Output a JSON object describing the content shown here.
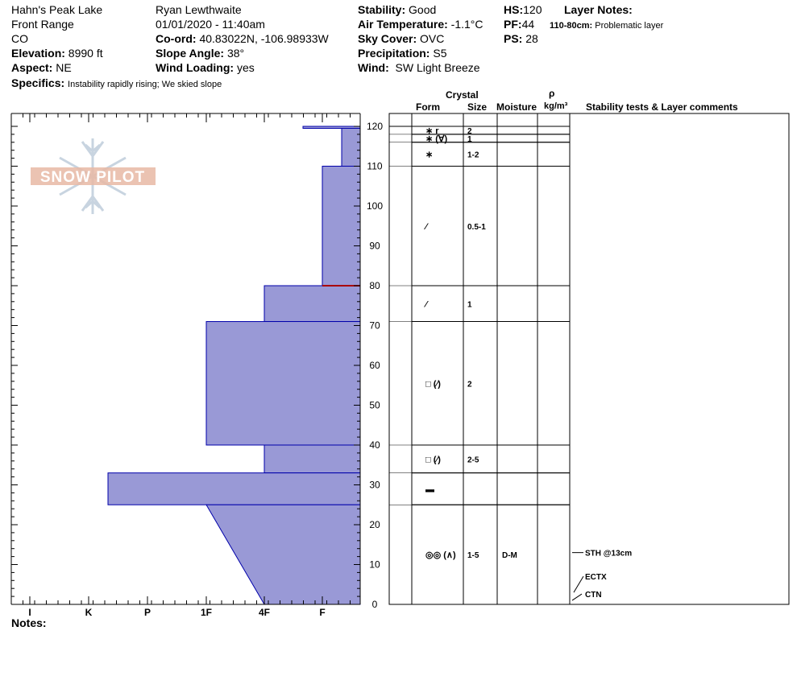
{
  "header": {
    "location": "Hahn's Peak Lake",
    "range": "Front Range",
    "state": "CO",
    "elevation_label": "Elevation:",
    "elevation": "8990 ft",
    "aspect_label": "Aspect:",
    "aspect": "NE",
    "specifics_label": "Specifics:",
    "specifics": "Instability rapidly rising;  We skied slope",
    "observer": "Ryan Lewthwaite",
    "datetime": "01/01/2020 - 11:40am",
    "coord_label": "Co-ord:",
    "coord": "40.83022N, -106.98933W",
    "slope_label": "Slope Angle:",
    "slope": "38°",
    "wind_loading_label": "Wind Loading:",
    "wind_loading": "yes",
    "stability_label": "Stability:",
    "stability": "Good",
    "air_temp_label": "Air Temperature:",
    "air_temp": "-1.1°C",
    "sky_label": "Sky Cover:",
    "sky": "OVC",
    "precip_label": "Precipitation:",
    "precip": "S5",
    "wind_label": "Wind:",
    "wind": "SW Light Breeze",
    "hs_label": "HS:",
    "hs": "120",
    "pf_label": "PF:",
    "pf": "44",
    "ps_label": "PS:",
    "ps": "28",
    "layer_notes_label": "Layer Notes:",
    "layer_note_range": "110-80cm:",
    "layer_note_text": "Problematic layer",
    "notes_label": "Notes:"
  },
  "logo_text": "SNOW PILOT",
  "colors": {
    "hardness_fill": "#9999d6",
    "hardness_stroke": "#0000aa",
    "problem_line": "#aa0000",
    "logo": "#e8a890"
  },
  "columns": {
    "crystal": "Crystal",
    "form": "Form",
    "size": "Size",
    "moisture": "Moisture",
    "rho": "ρ",
    "density_unit": "kg/m³",
    "comments": "Stability tests & Layer comments"
  },
  "chart_data": {
    "type": "snow_profile",
    "y_range": [
      0,
      120
    ],
    "y_ticks": [
      0,
      10,
      20,
      30,
      40,
      50,
      60,
      70,
      80,
      90,
      100,
      110,
      120
    ],
    "hardness_scale": [
      "I",
      "K",
      "P",
      "1F",
      "4F",
      "F"
    ],
    "hardness_profile": [
      {
        "top": 120,
        "bottom": 119.5,
        "hardness": "F-"
      },
      {
        "top": 119.5,
        "bottom": 110,
        "hardness": "F+"
      },
      {
        "top": 110,
        "bottom": 80,
        "hardness": "F"
      },
      {
        "top": 80,
        "bottom": 71,
        "hardness": "4F"
      },
      {
        "top": 71,
        "bottom": 40,
        "hardness": "1F"
      },
      {
        "top": 40,
        "bottom": 33,
        "hardness": "4F"
      },
      {
        "top": 33,
        "bottom": 25,
        "hardness": "K+"
      },
      {
        "top": 25,
        "bottom": 0,
        "hardness_top": "1F",
        "hardness_bottom": "4F"
      }
    ],
    "problematic_layer_depth": 80,
    "layers": [
      {
        "top": 120,
        "bottom": 118,
        "form": "∗ r",
        "size": "2",
        "moisture": ""
      },
      {
        "top": 118,
        "bottom": 116,
        "form": "∗ (∀)",
        "size": "1",
        "moisture": ""
      },
      {
        "top": 116,
        "bottom": 110,
        "form": "∗",
        "size": "1-2",
        "moisture": ""
      },
      {
        "top": 110,
        "bottom": 80,
        "form": "⁄",
        "size": "0.5-1",
        "moisture": ""
      },
      {
        "top": 80,
        "bottom": 71,
        "form": "⁄",
        "size": "1",
        "moisture": ""
      },
      {
        "top": 71,
        "bottom": 40,
        "form": "□ (⁄)",
        "size": "2",
        "moisture": ""
      },
      {
        "top": 40,
        "bottom": 33,
        "form": "□ (⁄)",
        "size": "2-5",
        "moisture": ""
      },
      {
        "top": 33,
        "bottom": 25,
        "form": "▬",
        "size": "",
        "moisture": ""
      },
      {
        "top": 25,
        "bottom": 0,
        "form": "◎◎ (∧)",
        "size": "1-5",
        "moisture": "D-M"
      }
    ],
    "stability_tests": [
      {
        "depth": 13,
        "label": "STH @13cm"
      },
      {
        "depth": 3,
        "label": "ECTX"
      },
      {
        "depth": 1,
        "label": "CTN"
      }
    ]
  }
}
